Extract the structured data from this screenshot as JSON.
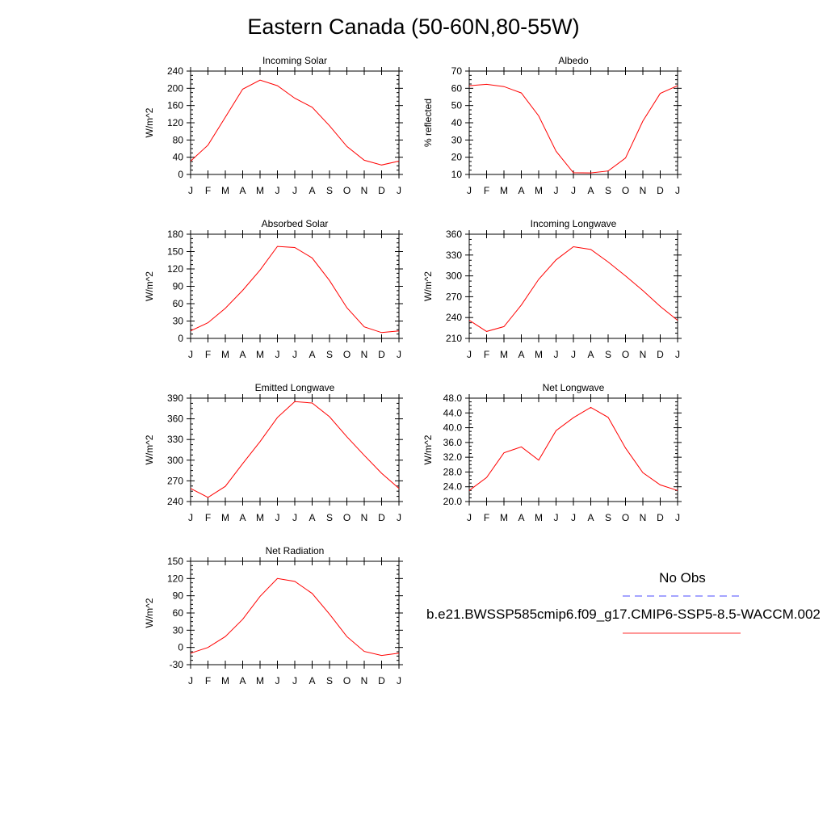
{
  "title": "Eastern Canada (50-60N,80-55W)",
  "colors": {
    "model": "#ff0000",
    "obs": "#0000ff",
    "axis": "#000000"
  },
  "legend": {
    "obs_label": "No Obs",
    "model_label": "b.e21.BWSSP585cmip6.f09_g17.CMIP6-SSP5-8.5-WACCM.002"
  },
  "chart_data": [
    {
      "type": "line",
      "title": "Incoming Solar",
      "ylabel": "W/m^2",
      "ylim": [
        0,
        240
      ],
      "yticks": [
        "0",
        "40",
        "80",
        "120",
        "160",
        "200",
        "240"
      ],
      "categories": [
        "J",
        "F",
        "M",
        "A",
        "M",
        "J",
        "J",
        "A",
        "S",
        "O",
        "N",
        "D",
        "J"
      ],
      "series": [
        {
          "values": [
            31,
            68,
            133,
            198,
            219,
            206,
            177,
            156,
            113,
            65,
            33,
            22,
            31
          ]
        }
      ]
    },
    {
      "type": "line",
      "title": "Albedo",
      "ylabel": "% reflected",
      "ylim": [
        10,
        70
      ],
      "yticks": [
        "10",
        "20",
        "30",
        "40",
        "50",
        "60",
        "70"
      ],
      "categories": [
        "J",
        "F",
        "M",
        "A",
        "M",
        "J",
        "J",
        "A",
        "S",
        "O",
        "N",
        "D",
        "J"
      ],
      "series": [
        {
          "values": [
            61.5,
            62.3,
            61.0,
            57.3,
            44.0,
            23.5,
            11.0,
            10.9,
            12.0,
            19.5,
            41.0,
            57.0,
            61.5
          ]
        }
      ]
    },
    {
      "type": "line",
      "title": "Absorbed Solar",
      "ylabel": "W/m^2",
      "ylim": [
        0,
        180
      ],
      "yticks": [
        "0",
        "30",
        "60",
        "90",
        "120",
        "150",
        "180"
      ],
      "categories": [
        "J",
        "F",
        "M",
        "A",
        "M",
        "J",
        "J",
        "A",
        "S",
        "O",
        "N",
        "D",
        "J"
      ],
      "series": [
        {
          "values": [
            13,
            27,
            52,
            83,
            118,
            159,
            157,
            139,
            100,
            53,
            20,
            10,
            13
          ]
        }
      ]
    },
    {
      "type": "line",
      "title": "Incoming Longwave",
      "ylabel": "W/m^2",
      "ylim": [
        210,
        360
      ],
      "yticks": [
        "210",
        "240",
        "270",
        "300",
        "330",
        "360"
      ],
      "categories": [
        "J",
        "F",
        "M",
        "A",
        "M",
        "J",
        "J",
        "A",
        "S",
        "O",
        "N",
        "D",
        "J"
      ],
      "series": [
        {
          "values": [
            236,
            220,
            227,
            258,
            295,
            323,
            342,
            338,
            320,
            300,
            279,
            256,
            236
          ]
        }
      ]
    },
    {
      "type": "line",
      "title": "Emitted Longwave",
      "ylabel": "W/m^2",
      "ylim": [
        240,
        390
      ],
      "yticks": [
        "240",
        "270",
        "300",
        "330",
        "360",
        "390"
      ],
      "categories": [
        "J",
        "F",
        "M",
        "A",
        "M",
        "J",
        "J",
        "A",
        "S",
        "O",
        "N",
        "D",
        "J"
      ],
      "series": [
        {
          "values": [
            259,
            246,
            262,
            295,
            327,
            362,
            385,
            383,
            363,
            334,
            307,
            281,
            259
          ]
        }
      ]
    },
    {
      "type": "line",
      "title": "Net Longwave",
      "ylabel": "W/m^2",
      "ylim": [
        20,
        48
      ],
      "yticks": [
        "20.0",
        "24.0",
        "28.0",
        "32.0",
        "36.0",
        "40.0",
        "44.0",
        "48.0"
      ],
      "categories": [
        "J",
        "F",
        "M",
        "A",
        "M",
        "J",
        "J",
        "A",
        "S",
        "O",
        "N",
        "D",
        "J"
      ],
      "series": [
        {
          "values": [
            23.0,
            26.5,
            33.2,
            34.8,
            31.2,
            39.2,
            42.7,
            45.5,
            42.8,
            34.5,
            27.8,
            24.5,
            23.0
          ]
        }
      ]
    },
    {
      "type": "line",
      "title": "Net Radiation",
      "ylabel": "W/m^2",
      "ylim": [
        -30,
        150
      ],
      "yticks": [
        "-30",
        "0",
        "30",
        "60",
        "90",
        "120",
        "150"
      ],
      "categories": [
        "J",
        "F",
        "M",
        "A",
        "M",
        "J",
        "J",
        "A",
        "S",
        "O",
        "N",
        "D",
        "J"
      ],
      "series": [
        {
          "values": [
            -10,
            0,
            19,
            49,
            89,
            120,
            115,
            94,
            58,
            19,
            -7,
            -14,
            -10
          ]
        }
      ]
    }
  ]
}
